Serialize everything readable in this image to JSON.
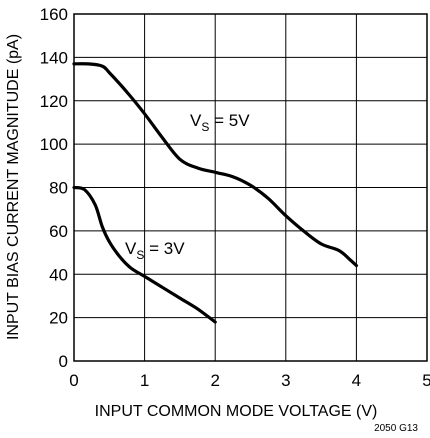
{
  "chart_data": {
    "type": "line",
    "xlabel": "INPUT COMMON MODE VOLTAGE (V)",
    "ylabel": "INPUT BIAS CURRENT MAGNITUDE (pA)",
    "xlim": [
      0,
      5
    ],
    "ylim": [
      0,
      160
    ],
    "x_ticks": [
      "0",
      "1",
      "2",
      "3",
      "4",
      "5"
    ],
    "y_ticks": [
      "0",
      "20",
      "40",
      "60",
      "80",
      "100",
      "120",
      "140",
      "160"
    ],
    "grid": true,
    "figure_id": "2050 G13",
    "series": [
      {
        "label_main": "V",
        "label_sub": "S",
        "label_rest": " = 5V",
        "x": [
          0,
          0.2,
          0.4,
          0.5,
          0.75,
          1.0,
          1.25,
          1.5,
          1.75,
          2.0,
          2.25,
          2.5,
          2.75,
          3.0,
          3.25,
          3.5,
          3.75,
          3.9,
          4.0
        ],
        "y": [
          137,
          137,
          136,
          133,
          124,
          114,
          103,
          93,
          89,
          87,
          85,
          81,
          75,
          67,
          60,
          54,
          51,
          47,
          44
        ]
      },
      {
        "label_main": "V",
        "label_sub": "S",
        "label_rest": " = 3V",
        "x": [
          0,
          0.15,
          0.3,
          0.4,
          0.5,
          0.65,
          0.8,
          1.0,
          1.25,
          1.5,
          1.75,
          2.0
        ],
        "y": [
          80,
          79,
          72,
          62,
          55,
          48,
          43,
          39,
          34,
          29,
          24,
          18
        ]
      }
    ]
  }
}
